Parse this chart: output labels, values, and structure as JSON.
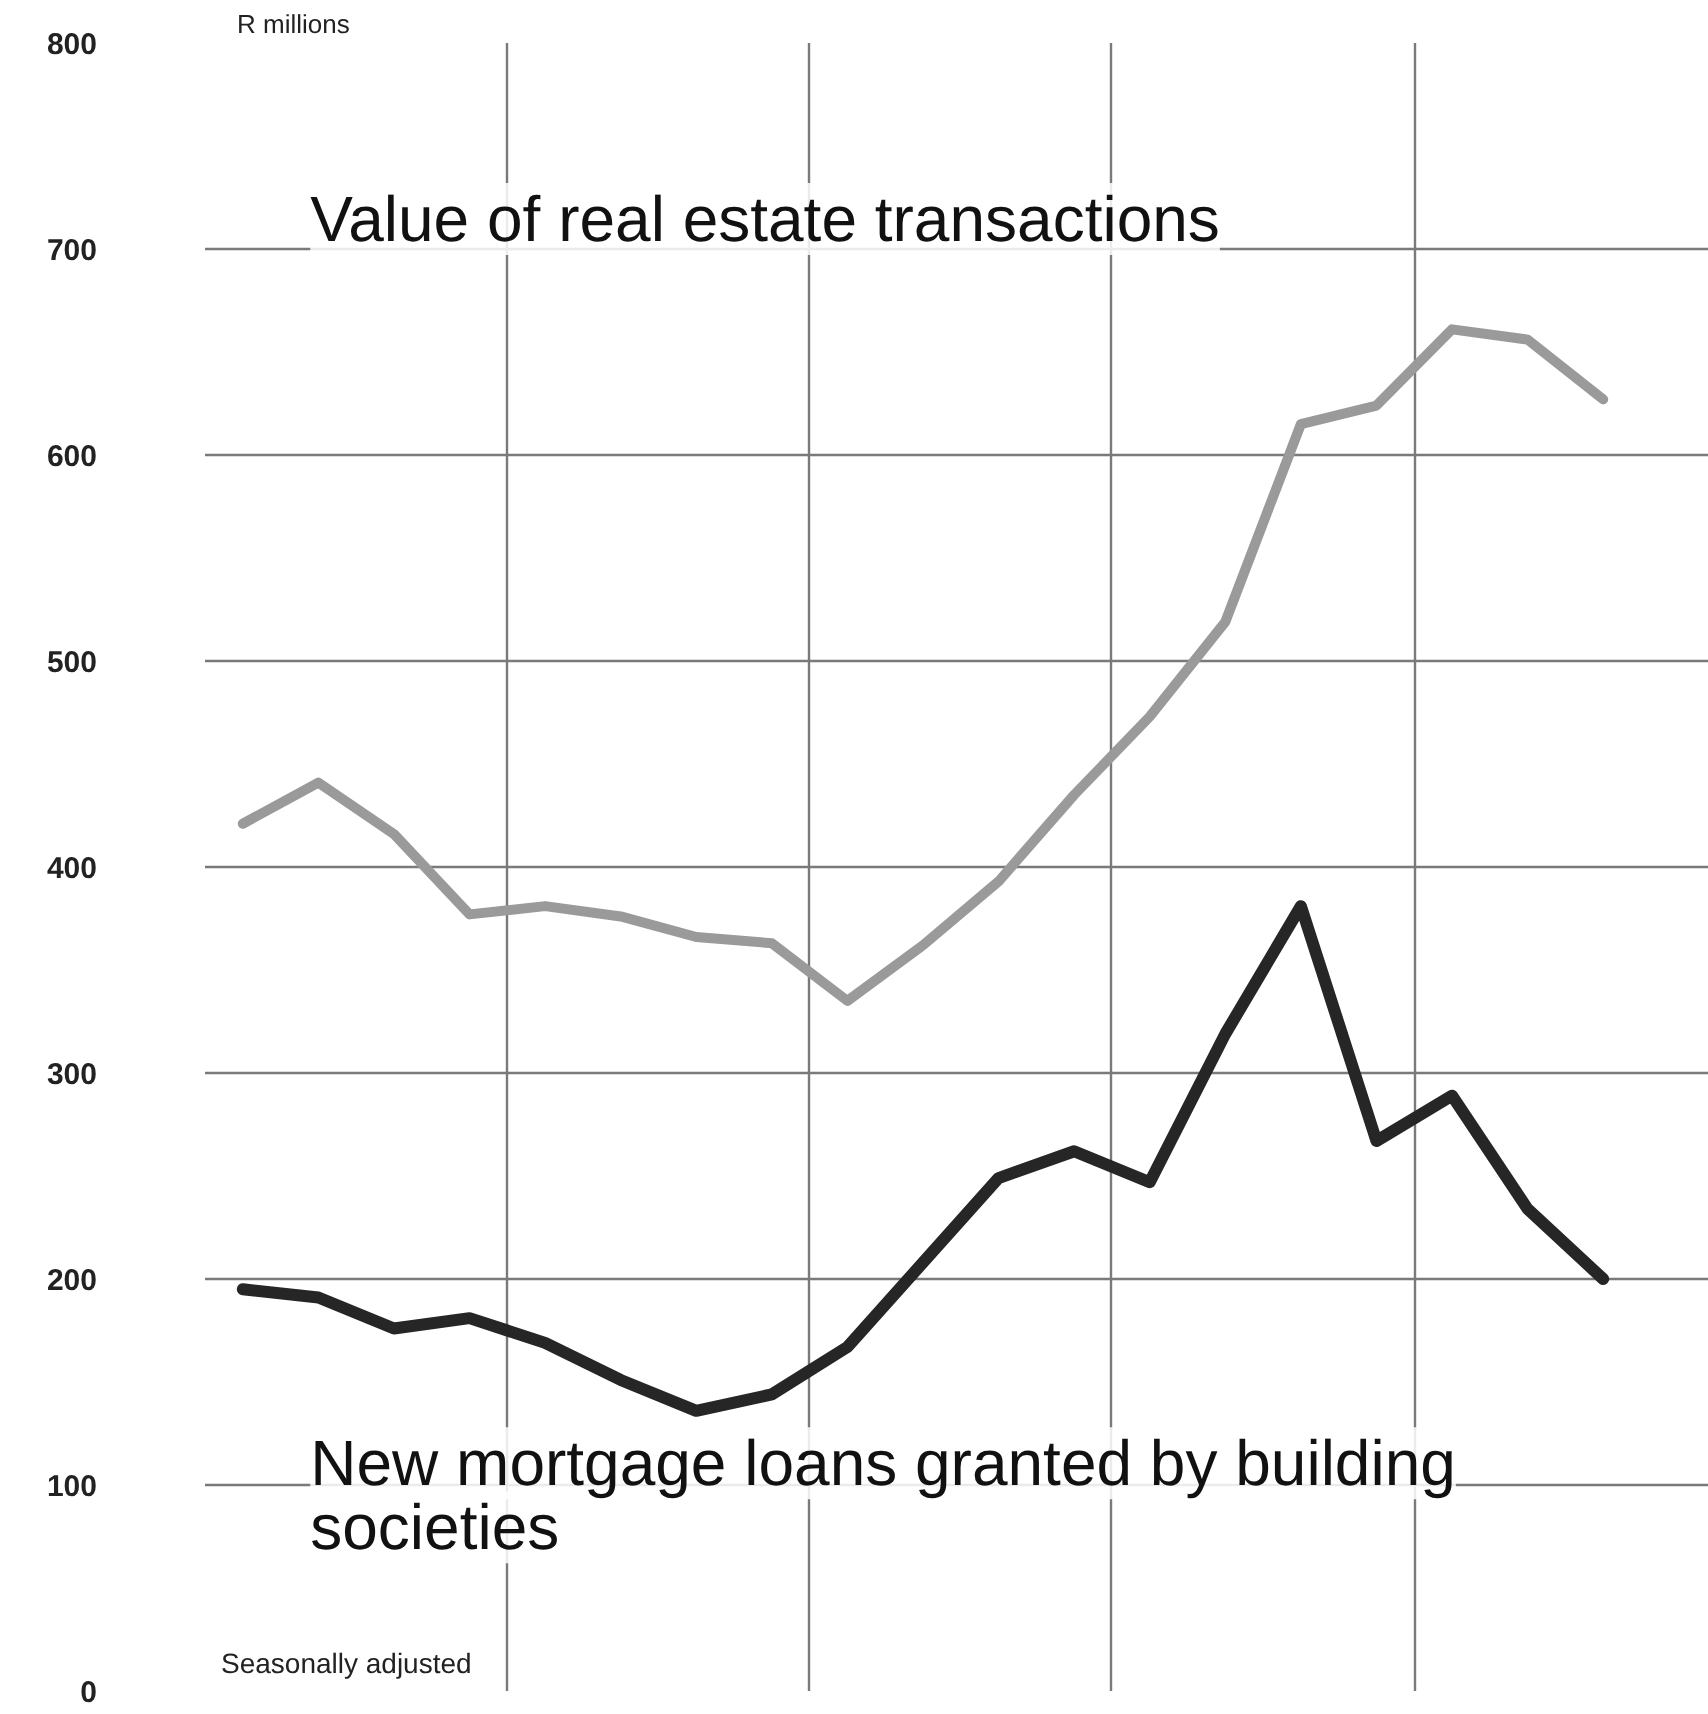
{
  "chart_data": {
    "type": "line",
    "ylabel": "R millions",
    "categories": [
      null,
      null,
      null,
      null,
      null,
      null,
      null,
      null,
      null,
      null,
      null,
      null,
      null,
      null,
      null,
      null,
      null,
      null,
      null
    ],
    "ylim": [
      0,
      800
    ],
    "yticks": [
      0,
      100,
      200,
      300,
      400,
      500,
      600,
      700,
      800
    ],
    "tick_labels": "y",
    "grid": true,
    "legend": false,
    "marker": "none",
    "line_style": "solid",
    "series": [
      {
        "name": "Value of real estate transactions",
        "color": "#9a9a9a",
        "values": [
          421,
          441,
          416,
          377,
          381,
          376,
          366,
          363,
          335,
          362,
          393,
          435,
          473,
          519,
          615,
          624,
          661,
          656,
          627
        ]
      },
      {
        "name": "New mortgage loans granted by building societies",
        "color": "#262626",
        "values": [
          195,
          191,
          176,
          181,
          169,
          151,
          136,
          144,
          167,
          208,
          249,
          262,
          247,
          319,
          381,
          267,
          289,
          234,
          200
        ]
      }
    ],
    "annotations": [
      "Seasonally adjusted"
    ]
  }
}
